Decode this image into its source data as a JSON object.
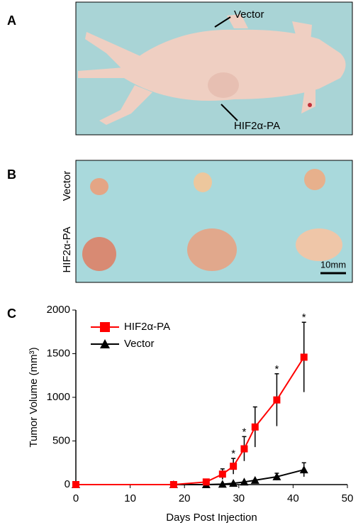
{
  "panels": {
    "a": {
      "label": "A",
      "upper_arrow": "Vector",
      "lower_arrow": "HIF2α-PA"
    },
    "b": {
      "label": "B",
      "row_top": "Vector",
      "row_bottom": "HIF2α-PA",
      "scale_bar": "10mm"
    },
    "c": {
      "label": "C"
    }
  },
  "chart_data": {
    "type": "line",
    "x_label": "Days Post Injection",
    "y_label": "Tumor Volume (mm³)",
    "x": [
      0,
      18,
      24,
      27,
      29,
      31,
      33,
      37,
      42
    ],
    "series": [
      {
        "name": "HIF2α-PA",
        "color": "#ff0000",
        "marker": "square",
        "values": [
          0,
          0,
          30,
          120,
          210,
          410,
          660,
          970,
          1460
        ],
        "errors": [
          0,
          0,
          0,
          60,
          90,
          140,
          230,
          300,
          400
        ]
      },
      {
        "name": "Vector",
        "color": "#000000",
        "marker": "triangle",
        "values": [
          0,
          0,
          0,
          5,
          15,
          30,
          50,
          90,
          170
        ],
        "errors": [
          0,
          0,
          0,
          0,
          0,
          0,
          0,
          40,
          80
        ]
      }
    ],
    "annotations": [
      {
        "x": 29,
        "text": "*"
      },
      {
        "x": 31,
        "text": "*"
      },
      {
        "x": 37,
        "text": "*"
      },
      {
        "x": 42,
        "text": "*"
      }
    ],
    "xlim": [
      0,
      50
    ],
    "xticks": [
      0,
      10,
      20,
      30,
      40,
      50
    ],
    "ylim": [
      0,
      2000
    ],
    "yticks": [
      0,
      500,
      1000,
      1500,
      2000
    ],
    "legend": "upper-left",
    "grid": false
  }
}
